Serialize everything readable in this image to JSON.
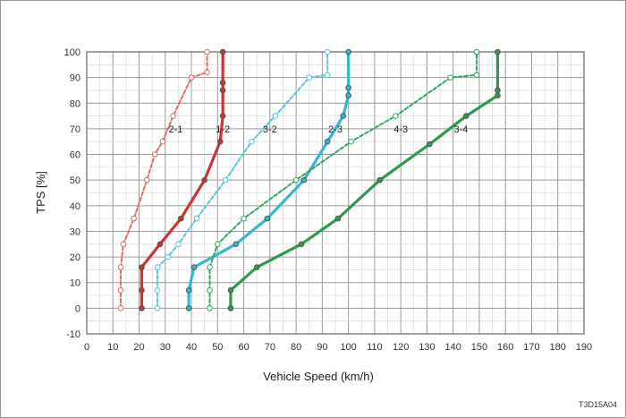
{
  "figure_code": "T3D15A04",
  "chart_data": {
    "type": "line",
    "xlabel": "Vehicle Speed (km/h)",
    "ylabel": "TPS [%]",
    "xlim": [
      0,
      190
    ],
    "ylim": [
      -10,
      100
    ],
    "x_ticks": [
      0,
      10,
      20,
      30,
      40,
      50,
      60,
      70,
      80,
      90,
      100,
      110,
      120,
      130,
      140,
      150,
      160,
      170,
      180,
      190
    ],
    "y_ticks": [
      -10,
      0,
      10,
      20,
      30,
      40,
      50,
      60,
      70,
      80,
      90,
      100
    ],
    "grid": true,
    "legend": "none",
    "series": [
      {
        "name": "2-1",
        "color": "#e06a6a",
        "style": "dashed",
        "marker": "open",
        "label_pos": [
          34,
          70
        ],
        "points": [
          [
            13,
            0
          ],
          [
            13,
            7
          ],
          [
            13,
            16
          ],
          [
            14,
            25
          ],
          [
            18,
            35
          ],
          [
            23,
            50
          ],
          [
            26,
            60
          ],
          [
            29,
            65
          ],
          [
            33,
            75
          ],
          [
            40,
            90
          ],
          [
            46,
            92
          ],
          [
            46,
            100
          ]
        ]
      },
      {
        "name": "1-2",
        "color": "#cc3333",
        "style": "solid",
        "marker": "filled",
        "label_pos": [
          52,
          70
        ],
        "points": [
          [
            21,
            0
          ],
          [
            21,
            7
          ],
          [
            21,
            16
          ],
          [
            28,
            25
          ],
          [
            36,
            35
          ],
          [
            45,
            50
          ],
          [
            51,
            65
          ],
          [
            52,
            75
          ],
          [
            52,
            85
          ],
          [
            52,
            88
          ],
          [
            52,
            100
          ]
        ]
      },
      {
        "name": "3-2",
        "color": "#55c8d8",
        "style": "dashed",
        "marker": "open",
        "label_pos": [
          70,
          70
        ],
        "points": [
          [
            27,
            0
          ],
          [
            27,
            7
          ],
          [
            27,
            16
          ],
          [
            31,
            20
          ],
          [
            35,
            25
          ],
          [
            42,
            35
          ],
          [
            53,
            50
          ],
          [
            63,
            65
          ],
          [
            72,
            75
          ],
          [
            85,
            90
          ],
          [
            92,
            91
          ],
          [
            92,
            100
          ]
        ]
      },
      {
        "name": "2-3",
        "color": "#33b8d0",
        "style": "solid",
        "marker": "filled",
        "label_pos": [
          95,
          70
        ],
        "points": [
          [
            39,
            0
          ],
          [
            39,
            7
          ],
          [
            41,
            16
          ],
          [
            57,
            25
          ],
          [
            69,
            35
          ],
          [
            83,
            50
          ],
          [
            92,
            65
          ],
          [
            98,
            75
          ],
          [
            100,
            83
          ],
          [
            100,
            86
          ],
          [
            100,
            100
          ]
        ]
      },
      {
        "name": "4-3",
        "color": "#33a860",
        "style": "dashed",
        "marker": "open",
        "label_pos": [
          120,
          70
        ],
        "points": [
          [
            47,
            0
          ],
          [
            47,
            7
          ],
          [
            47,
            16
          ],
          [
            50,
            25
          ],
          [
            60,
            35
          ],
          [
            80,
            50
          ],
          [
            101,
            65
          ],
          [
            118,
            75
          ],
          [
            139,
            90
          ],
          [
            149,
            91
          ],
          [
            149,
            100
          ]
        ]
      },
      {
        "name": "3-4",
        "color": "#2e9a50",
        "style": "solid",
        "marker": "filled",
        "label_pos": [
          143,
          70
        ],
        "points": [
          [
            55,
            0
          ],
          [
            55,
            7
          ],
          [
            65,
            16
          ],
          [
            82,
            25
          ],
          [
            96,
            35
          ],
          [
            112,
            50
          ],
          [
            131,
            64
          ],
          [
            145,
            75
          ],
          [
            157,
            83
          ],
          [
            157,
            85
          ],
          [
            157,
            100
          ]
        ]
      }
    ]
  }
}
